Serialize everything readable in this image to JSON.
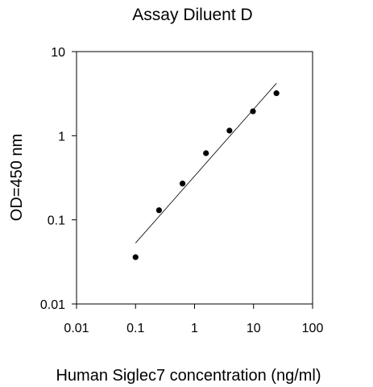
{
  "chart_data": {
    "type": "scatter",
    "title": "Assay Diluent D",
    "xlabel": "Human Siglec7 concentration (ng/ml)",
    "ylabel": "OD=450 nm",
    "x_scale": "log",
    "y_scale": "log",
    "xlim": [
      0.01,
      100
    ],
    "ylim": [
      0.01,
      10
    ],
    "x_ticks": [
      "0.01",
      "0.1",
      "1",
      "10",
      "100"
    ],
    "y_ticks": [
      "0.01",
      "0.1",
      "1",
      "10"
    ],
    "grid": false,
    "series": [
      {
        "x": [
          0.1,
          0.25,
          0.625,
          1.5625,
          3.906,
          9.766,
          24.41
        ],
        "y": [
          0.036,
          0.13,
          0.27,
          0.62,
          1.15,
          1.95,
          3.2
        ]
      }
    ],
    "fit_line": {
      "x": [
        0.1,
        24.41
      ],
      "y": [
        0.053,
        4.2
      ]
    },
    "marker_color": "#000000",
    "line_color": "#000000"
  }
}
